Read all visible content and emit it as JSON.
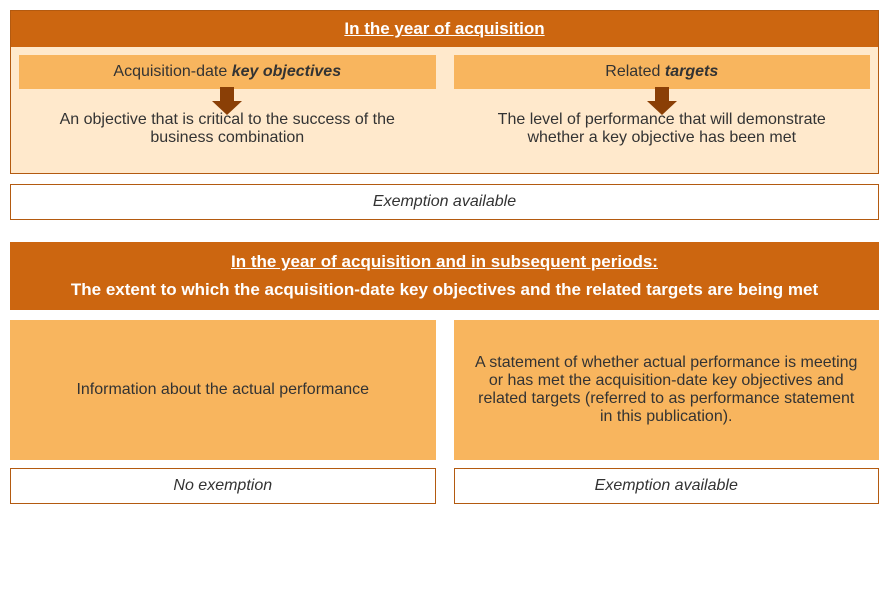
{
  "colors": {
    "primary": "#cc6610",
    "secondary": "#f8b55e",
    "tertiary": "#ffe9cc",
    "border": "#b35a10",
    "arrow": "#8a3f06",
    "text_on_dark": "#ffffff",
    "text": "#333333",
    "white": "#ffffff"
  },
  "typography": {
    "title_fontsize": 17,
    "body_fontsize": 16
  },
  "section1": {
    "title": "In the year of acquisition",
    "left": {
      "header_plain": "Acquisition-date ",
      "header_em": "key objectives",
      "body": "An objective that is critical to the success of the business combination"
    },
    "right": {
      "header_plain": "Related ",
      "header_em": "targets",
      "body": "The level of performance that will demonstrate whether a key objective has been met"
    },
    "footer": "Exemption available"
  },
  "section2": {
    "title": "In the year of acquisition and in subsequent periods:",
    "subtitle": "The extent to which the acquisition-date key objectives and the related targets are being met",
    "left": {
      "body": "Information about the actual performance",
      "footer": "No exemption"
    },
    "right": {
      "body": "A statement of whether actual performance is meeting or has met the acquisition-date key objectives and related targets (referred to as performance statement in this publication).",
      "footer": "Exemption available"
    }
  }
}
